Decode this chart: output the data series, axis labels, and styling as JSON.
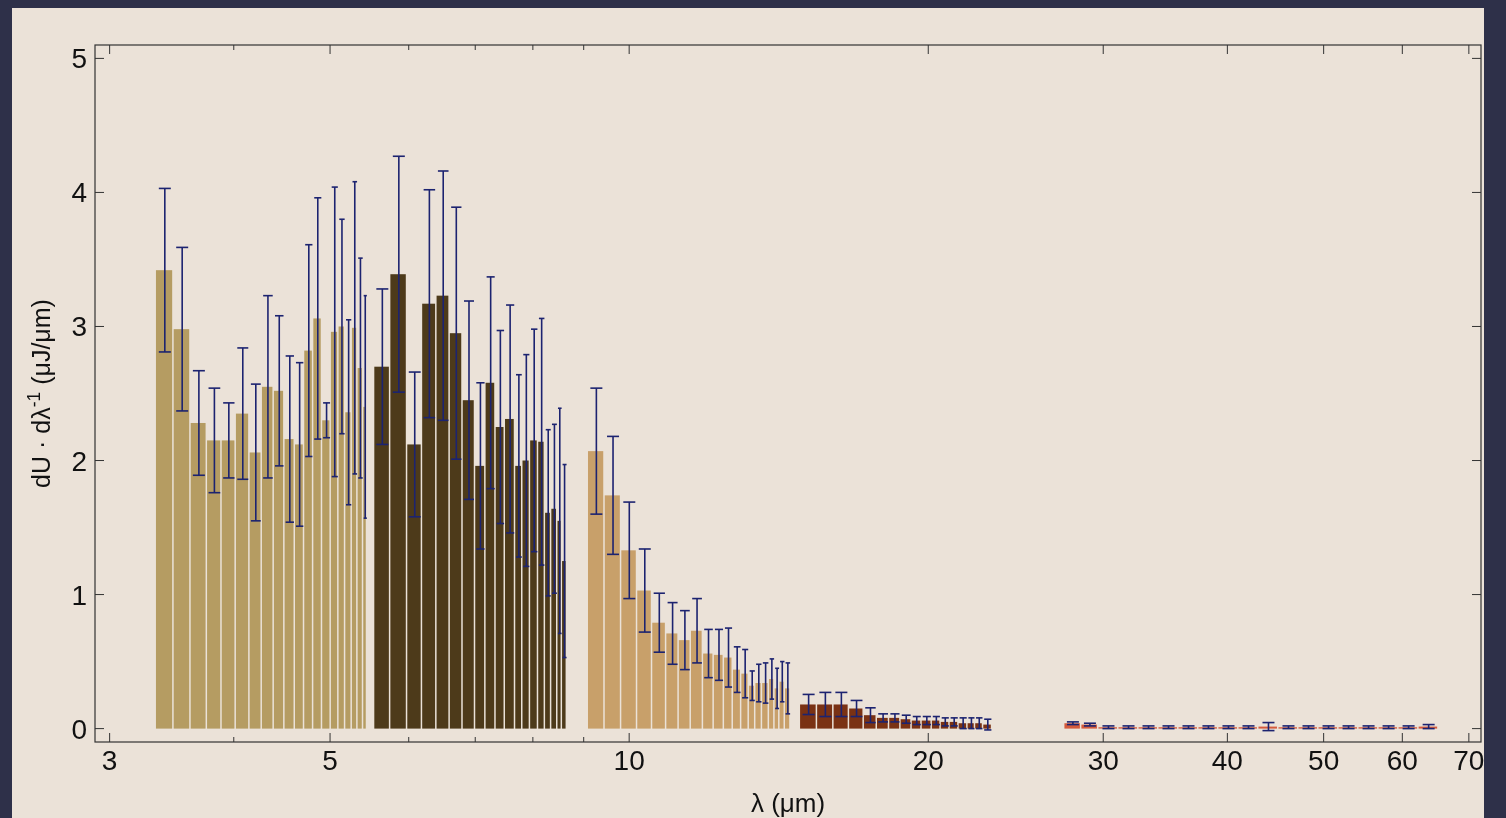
{
  "chart_data": {
    "type": "histogram",
    "xlabel": "λ (μm)",
    "ylabel": "dU · dλ$^{-1}$ (μJ/μm)",
    "log": "x",
    "xlim": [
      2.9,
      72
    ],
    "ylim": [
      -0.1,
      5.1
    ],
    "xticks": [
      3,
      {
        "value": 4,
        "label": null
      },
      5,
      {
        "value": 6,
        "label": null
      },
      {
        "value": 7,
        "label": null
      },
      {
        "value": 8,
        "label": null
      },
      {
        "value": 9,
        "label": null
      },
      10,
      20,
      30,
      40,
      50,
      60,
      70
    ],
    "yticks": [
      0,
      1,
      2,
      3,
      4,
      5
    ],
    "grid": false,
    "bins": [
      3.34,
      3.48,
      3.62,
      3.76,
      3.89,
      4.02,
      4.15,
      4.27,
      4.39,
      4.5,
      4.61,
      4.71,
      4.81,
      4.91,
      5.01,
      5.1,
      5.18,
      5.26,
      5.33,
      5.4,
      5.45,
      5.54,
      5.75,
      5.98,
      6.19,
      6.4,
      6.6,
      6.8,
      7.0,
      7.17,
      7.34,
      7.5,
      7.68,
      7.81,
      7.95,
      8.1,
      8.23,
      8.35,
      8.47,
      8.56,
      8.66,
      9.09,
      9.45,
      9.82,
      10.19,
      10.55,
      10.9,
      11.22,
      11.54,
      11.87,
      12.17,
      12.46,
      12.72,
      12.97,
      13.2,
      13.4,
      13.61,
      13.83,
      14.01,
      14.17,
      14.35,
      14.54,
      14.86,
      15.46,
      16.06,
      16.65,
      17.23,
      17.76,
      18.27,
      18.76,
      19.25,
      19.7,
      20.17,
      20.59,
      21.02,
      21.46,
      21.91,
      22.3,
      22.72,
      23.2,
      27.42,
      28.52,
      29.67,
      31.08,
      32.56,
      34.1,
      35.72,
      37.41,
      39.18,
      41.05,
      42.99,
      45.03,
      47.17,
      49.41,
      51.76,
      54.21,
      56.79,
      59.48,
      62.31,
      65.27
    ],
    "values": [
      3.42,
      2.98,
      2.28,
      2.15,
      2.15,
      2.35,
      2.06,
      2.55,
      2.52,
      2.16,
      2.12,
      2.82,
      3.06,
      2.3,
      2.96,
      3.0,
      2.36,
      2.99,
      2.69,
      2.4,
      null,
      2.7,
      3.39,
      2.12,
      3.17,
      3.23,
      2.95,
      2.45,
      1.96,
      2.58,
      2.25,
      2.31,
      1.96,
      2.0,
      2.15,
      2.14,
      1.61,
      1.64,
      1.55,
      1.25,
      null,
      2.07,
      1.74,
      1.33,
      1.03,
      0.79,
      0.71,
      0.66,
      0.73,
      0.56,
      0.55,
      0.53,
      0.44,
      0.41,
      0.32,
      0.34,
      0.34,
      0.37,
      0.3,
      0.35,
      0.3,
      null,
      0.18,
      0.18,
      0.18,
      0.15,
      0.1,
      0.08,
      0.08,
      0.07,
      0.06,
      0.06,
      0.06,
      0.05,
      0.05,
      0.04,
      0.04,
      0.04,
      0.03,
      null,
      0.04,
      0.03,
      0.01,
      0.01,
      0.01,
      0.01,
      0.01,
      0.01,
      0.01,
      0.01,
      0.015,
      0.01,
      0.01,
      0.01,
      0.01,
      0.01,
      0.01,
      0.01,
      0.015
    ],
    "errors": [
      0.61,
      0.61,
      0.39,
      0.39,
      0.28,
      0.49,
      0.51,
      0.68,
      0.56,
      0.62,
      0.61,
      0.79,
      0.9,
      0.13,
      1.08,
      0.8,
      0.69,
      1.09,
      0.82,
      0.83,
      null,
      0.58,
      0.88,
      0.54,
      0.85,
      0.93,
      0.94,
      0.74,
      0.62,
      0.79,
      0.72,
      0.85,
      0.68,
      0.79,
      0.83,
      0.92,
      0.62,
      0.63,
      0.84,
      0.72,
      null,
      0.47,
      0.44,
      0.36,
      0.31,
      0.22,
      0.23,
      0.22,
      0.24,
      0.18,
      0.19,
      0.22,
      0.17,
      0.18,
      0.11,
      0.14,
      0.15,
      0.15,
      0.15,
      0.15,
      0.19,
      null,
      0.075,
      0.09,
      0.09,
      0.06,
      0.055,
      0.03,
      0.03,
      0.03,
      0.03,
      0.03,
      0.03,
      0.03,
      0.03,
      0.04,
      0.04,
      0.04,
      0.04,
      null,
      0.01,
      0.01,
      0.01,
      0.01,
      0.01,
      0.01,
      0.01,
      0.01,
      0.01,
      0.01,
      0.03,
      0.01,
      0.01,
      0.01,
      0.01,
      0.01,
      0.01,
      0.01,
      0.015
    ],
    "colors": [
      "#b59c62",
      "#b59c62",
      "#b59c62",
      "#b59c62",
      "#b59c62",
      "#b59c62",
      "#b59c62",
      "#b59c62",
      "#b59c62",
      "#b59c62",
      "#b59c62",
      "#b59c62",
      "#b59c62",
      "#b59c62",
      "#b59c62",
      "#b59c62",
      "#b59c62",
      "#b59c62",
      "#b59c62",
      "#b59c62",
      null,
      "#4d3a1a",
      "#4d3a1a",
      "#4d3a1a",
      "#4d3a1a",
      "#4d3a1a",
      "#4d3a1a",
      "#4d3a1a",
      "#4d3a1a",
      "#4d3a1a",
      "#4d3a1a",
      "#4d3a1a",
      "#4d3a1a",
      "#4d3a1a",
      "#4d3a1a",
      "#4d3a1a",
      "#4d3a1a",
      "#4d3a1a",
      "#4d3a1a",
      "#4d3a1a",
      null,
      "#c8a06a",
      "#c8a06a",
      "#c8a06a",
      "#c8a06a",
      "#c8a06a",
      "#c8a06a",
      "#c8a06a",
      "#c8a06a",
      "#c8a06a",
      "#c8a06a",
      "#c8a06a",
      "#c8a06a",
      "#c8a06a",
      "#c8a06a",
      "#c8a06a",
      "#c8a06a",
      "#c8a06a",
      "#c8a06a",
      "#c8a06a",
      "#c8a06a",
      null,
      "#7a3214",
      "#7a3214",
      "#7a3214",
      "#7a3214",
      "#7a3214",
      "#7a3214",
      "#7a3214",
      "#7a3214",
      "#7a3214",
      "#7a3214",
      "#7a3214",
      "#7a3214",
      "#7a3214",
      "#7a3214",
      "#7a3214",
      "#7a3214",
      "#7a3214",
      null,
      "#d45a3c",
      "#d45a3c",
      "#d45a3c",
      "#d45a3c",
      "#d45a3c",
      "#d45a3c",
      "#d45a3c",
      "#d45a3c",
      "#d45a3c",
      "#d45a3c",
      "#d45a3c",
      "#d45a3c",
      "#d45a3c",
      "#d45a3c",
      "#d45a3c",
      "#d45a3c",
      "#d45a3c",
      "#d45a3c",
      "#d45a3c"
    ]
  }
}
